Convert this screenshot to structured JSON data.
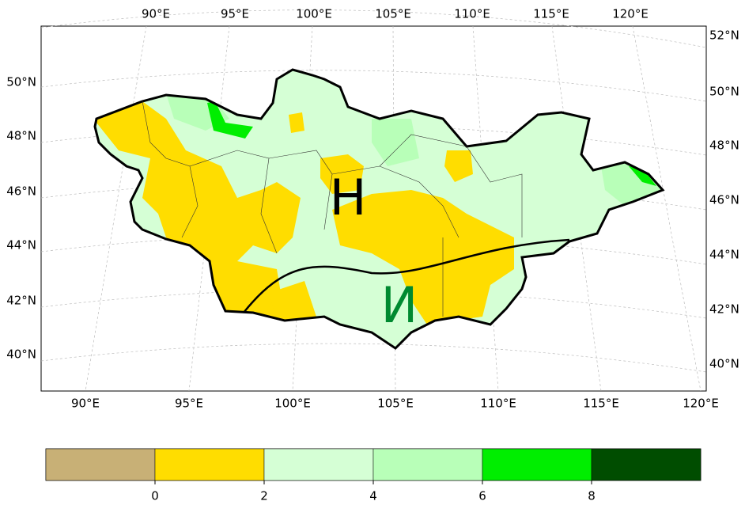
{
  "map": {
    "top_lon_labels": [
      "90°E",
      "95°E",
      "100°E",
      "105°E",
      "110°E",
      "115°E",
      "120°E"
    ],
    "bottom_lon_labels": [
      "90°E",
      "95°E",
      "100°E",
      "105°E",
      "110°E",
      "115°E",
      "120°E"
    ],
    "left_lat_labels": [
      "50°N",
      "48°N",
      "46°N",
      "44°N",
      "42°N",
      "40°N"
    ],
    "right_lat_labels": [
      "52°N",
      "50°N",
      "48°N",
      "46°N",
      "44°N",
      "42°N",
      "40°N"
    ],
    "region_labels": [
      {
        "text": "Н",
        "color": "#000000"
      },
      {
        "text": "И",
        "color": "#008a30"
      }
    ]
  },
  "colorbar": {
    "colors": [
      "#c8b076",
      "#ffdd00",
      "#d5ffd5",
      "#b8ffb8",
      "#00ee00",
      "#004d00"
    ],
    "ticks": [
      0,
      2,
      4,
      6,
      8
    ]
  }
}
